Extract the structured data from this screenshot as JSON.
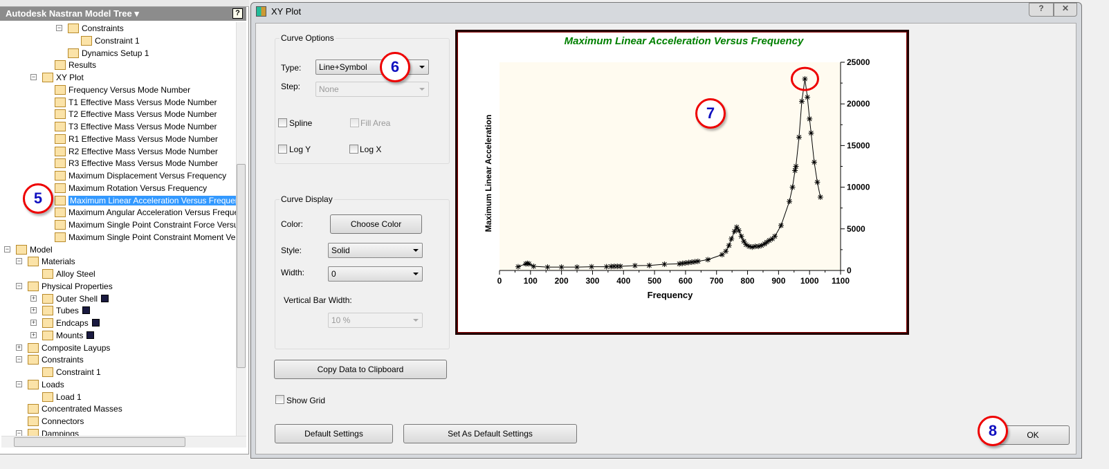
{
  "tree": {
    "title": "Autodesk Nastran Model Tree",
    "items": [
      {
        "label": "Constraints",
        "level": 4,
        "pm": "-"
      },
      {
        "label": "Constraint 1",
        "level": 5
      },
      {
        "label": "Dynamics Setup 1",
        "level": 4
      },
      {
        "label": "Results",
        "level": 3
      },
      {
        "label": "XY Plot",
        "level": 2,
        "pm": "-"
      },
      {
        "label": "Frequency Versus Mode Number",
        "level": 3
      },
      {
        "label": "T1 Effective Mass Versus Mode Number",
        "level": 3
      },
      {
        "label": "T2 Effective Mass Versus Mode Number",
        "level": 3
      },
      {
        "label": "T3 Effective Mass Versus Mode Number",
        "level": 3
      },
      {
        "label": "R1 Effective Mass Versus Mode Number",
        "level": 3
      },
      {
        "label": "R2 Effective Mass Versus Mode Number",
        "level": 3
      },
      {
        "label": "R3 Effective Mass Versus Mode Number",
        "level": 3
      },
      {
        "label": "Maximum Displacement Versus Frequency",
        "level": 3
      },
      {
        "label": "Maximum Rotation Versus Frequency",
        "level": 3
      },
      {
        "label": "Maximum Linear Acceleration Versus Frequenc",
        "level": 3,
        "selected": true
      },
      {
        "label": "Maximum Angular Acceleration Versus Freque",
        "level": 3
      },
      {
        "label": "Maximum Single Point Constraint Force Versus",
        "level": 3
      },
      {
        "label": "Maximum Single Point Constraint Moment Ve",
        "level": 3
      },
      {
        "label": "Model",
        "level": 0,
        "pm": "-"
      },
      {
        "label": "Materials",
        "level": 1,
        "pm": "-"
      },
      {
        "label": "Alloy Steel",
        "level": 2
      },
      {
        "label": "Physical Properties",
        "level": 1,
        "pm": "-"
      },
      {
        "label": "Outer Shell",
        "level": 2,
        "pm": "+",
        "swatch": "#1a1a40"
      },
      {
        "label": "Tubes",
        "level": 2,
        "pm": "+",
        "swatch": "#1a1a40"
      },
      {
        "label": "Endcaps",
        "level": 2,
        "pm": "+",
        "swatch": "#1a1a40"
      },
      {
        "label": "Mounts",
        "level": 2,
        "pm": "+",
        "swatch": "#1a1a40"
      },
      {
        "label": "Composite Layups",
        "level": 1,
        "pm": "+"
      },
      {
        "label": "Constraints",
        "level": 1,
        "pm": "-"
      },
      {
        "label": "Constraint 1",
        "level": 2
      },
      {
        "label": "Loads",
        "level": 1,
        "pm": "-"
      },
      {
        "label": "Load 1",
        "level": 2
      },
      {
        "label": "Concentrated Masses",
        "level": 1
      },
      {
        "label": "Connectors",
        "level": 1
      },
      {
        "label": "Dampings",
        "level": 1,
        "pm": "-"
      }
    ]
  },
  "dialog": {
    "title": "XY Plot",
    "help": "?",
    "close": "✕",
    "curve_options": {
      "label": "Curve Options",
      "type_label": "Type:",
      "type_value": "Line+Symbol",
      "step_label": "Step:",
      "step_value": "None",
      "spline": "Spline",
      "fill_area": "Fill Area",
      "log_y": "Log Y",
      "log_x": "Log X"
    },
    "curve_display": {
      "label": "Curve Display",
      "color_label": "Color:",
      "choose_color": "Choose Color",
      "style_label": "Style:",
      "style_value": "Solid",
      "width_label": "Width:",
      "width_value": "0",
      "vbar_label": "Vertical Bar Width:",
      "vbar_value": "10 %"
    },
    "copy": "Copy Data to Clipboard",
    "show_grid": "Show Grid",
    "default_settings": "Default Settings",
    "set_default": "Set As Default Settings",
    "ok": "OK"
  },
  "annotations": [
    "5",
    "6",
    "7",
    "8"
  ],
  "chart_data": {
    "type": "line",
    "title": "Maximum Linear Acceleration Versus Frequency",
    "xlabel": "Frequency",
    "ylabel": "Maximum Linear Acceleration",
    "xlim": [
      0,
      1100
    ],
    "ylim": [
      0,
      25000
    ],
    "xticks": [
      "0",
      "100",
      "200",
      "300",
      "400",
      "500",
      "600",
      "700",
      "800",
      "900",
      "1000",
      "1100"
    ],
    "yticks": [
      "0",
      "5000",
      "10000",
      "15000",
      "20000",
      "25000"
    ],
    "marker": "asterisk",
    "grid": false,
    "title_color": "#008000",
    "plot_bg": "#fffbf0",
    "x": [
      60,
      85,
      90,
      95,
      110,
      155,
      200,
      250,
      297,
      345,
      360,
      370,
      380,
      390,
      437,
      483,
      532,
      580,
      590,
      600,
      610,
      620,
      630,
      640,
      672,
      718,
      730,
      740,
      748,
      758,
      765,
      772,
      780,
      788,
      795,
      805,
      815,
      825,
      835,
      845,
      855,
      862,
      870,
      880,
      888,
      908,
      935,
      945,
      953,
      956,
      966,
      975,
      985,
      993,
      1000,
      1005,
      1015,
      1025,
      1035
    ],
    "y": [
      450,
      800,
      850,
      800,
      500,
      400,
      400,
      400,
      450,
      450,
      480,
      500,
      500,
      500,
      580,
      600,
      750,
      800,
      850,
      900,
      950,
      1000,
      1050,
      1100,
      1300,
      1900,
      2300,
      3000,
      3800,
      4700,
      5200,
      4800,
      4100,
      3500,
      3100,
      2900,
      2800,
      2900,
      2900,
      3000,
      3200,
      3400,
      3600,
      3800,
      4100,
      5400,
      8300,
      10000,
      12000,
      12500,
      16000,
      20300,
      23000,
      20800,
      18200,
      16500,
      13000,
      10600,
      8800
    ]
  }
}
